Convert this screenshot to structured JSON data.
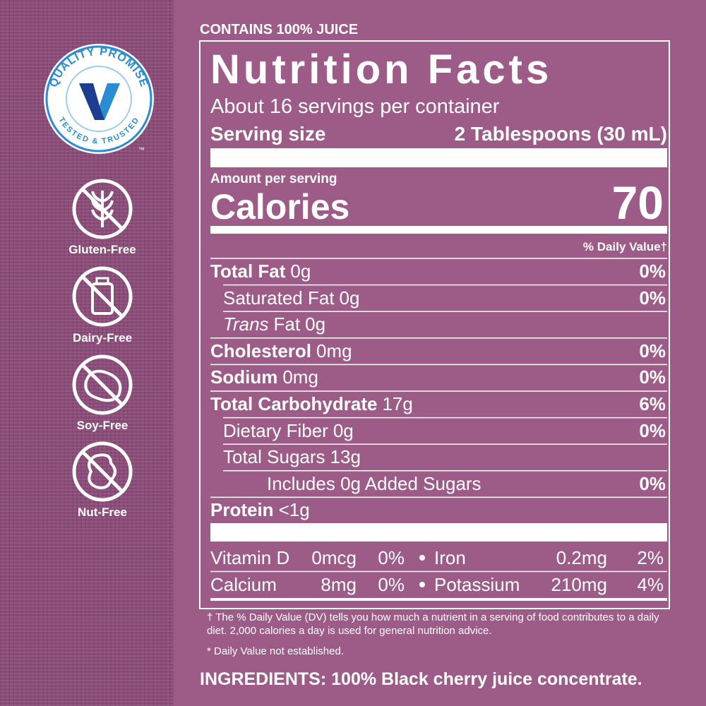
{
  "header": {
    "tagline": "CONTAINS 100% JUICE"
  },
  "badges": {
    "quality": {
      "top": "QUALITY PROMISE",
      "bottom": "TESTED & TRUSTED",
      "mark": "™"
    },
    "icons": [
      {
        "label": "Gluten-Free"
      },
      {
        "label": "Dairy-Free"
      },
      {
        "label": "Soy-Free"
      },
      {
        "label": "Nut-Free"
      }
    ]
  },
  "nutrition": {
    "title": "Nutrition Facts",
    "servings": "About 16 servings per container",
    "serving_size_label": "Serving size",
    "serving_size": "2 Tablespoons (30 mL)",
    "amount_per_serving": "Amount per serving",
    "calories_label": "Calories",
    "calories": "70",
    "dv_header": "% Daily Value†",
    "rows": [
      {
        "label": "Total Fat",
        "amount": "0g",
        "dv": "0%",
        "bold": true,
        "indent": 0
      },
      {
        "label": "Saturated Fat",
        "amount": "0g",
        "dv": "0%",
        "bold": false,
        "indent": 1
      },
      {
        "label_italic": "Trans",
        "label": "Fat",
        "amount": "0g",
        "bold": false,
        "indent": 1
      },
      {
        "label": "Cholesterol",
        "amount": "0mg",
        "dv": "0%",
        "bold": true,
        "indent": 0
      },
      {
        "label": "Sodium",
        "amount": "0mg",
        "dv": "0%",
        "bold": true,
        "indent": 0
      },
      {
        "label": "Total Carbohydrate",
        "amount": "17g",
        "dv": "6%",
        "bold": true,
        "indent": 0
      },
      {
        "label": "Dietary Fiber",
        "amount": "0g",
        "dv": "0%",
        "bold": false,
        "indent": 1
      },
      {
        "label": "Total Sugars",
        "amount": "13g",
        "bold": false,
        "indent": 1
      },
      {
        "label": "Includes 0g Added Sugars",
        "dv": "0%",
        "bold": false,
        "indent": 2
      },
      {
        "label": "Protein",
        "amount": "<1g",
        "bold": true,
        "indent": 0
      }
    ],
    "vitamins": [
      [
        {
          "name": "Vitamin D",
          "amount": "0mcg",
          "dv": "0%"
        },
        {
          "name": "Iron",
          "amount": "0.2mg",
          "dv": "2%"
        }
      ],
      [
        {
          "name": "Calcium",
          "amount": "8mg",
          "dv": "0%"
        },
        {
          "name": "Potassium",
          "amount": "210mg",
          "dv": "4%"
        }
      ]
    ],
    "footnotes": [
      "† The % Daily Value (DV) tells you how much a nutrient in a serving of food contributes to a daily diet. 2,000 calories a day is used for general nutrition advice.",
      "* Daily Value not established."
    ]
  },
  "ingredients": {
    "label": "INGREDIENTS:",
    "text": "100% Black cherry juice concentrate."
  }
}
